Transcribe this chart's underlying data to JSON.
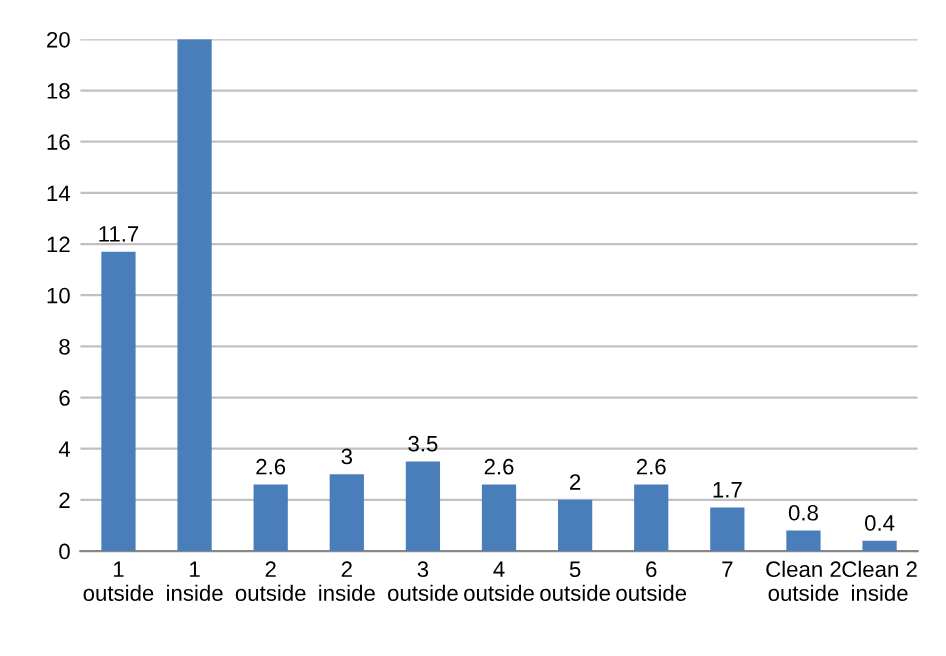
{
  "chart_data": {
    "type": "bar",
    "categories": [
      "1\noutside",
      "1\ninside",
      "2\noutside",
      "2\ninside",
      "3\noutside",
      "4\noutside",
      "5\noutside",
      "6\noutside",
      "7",
      "Clean 2\noutside",
      "Clean 2\ninside"
    ],
    "values": [
      11.7,
      20,
      2.6,
      3,
      3.5,
      2.6,
      2,
      2.6,
      1.7,
      0.8,
      0.4
    ],
    "value_labels": [
      "11.7",
      null,
      "2.6",
      "3",
      "3.5",
      "2.6",
      "2",
      "2.6",
      "1.7",
      "0.8",
      "0.4"
    ],
    "color": "#4a7ebb",
    "ylim": [
      0,
      20
    ],
    "yticks": [
      0,
      2,
      4,
      6,
      8,
      10,
      12,
      14,
      16,
      18,
      20
    ],
    "grid": "y",
    "legend": false
  }
}
